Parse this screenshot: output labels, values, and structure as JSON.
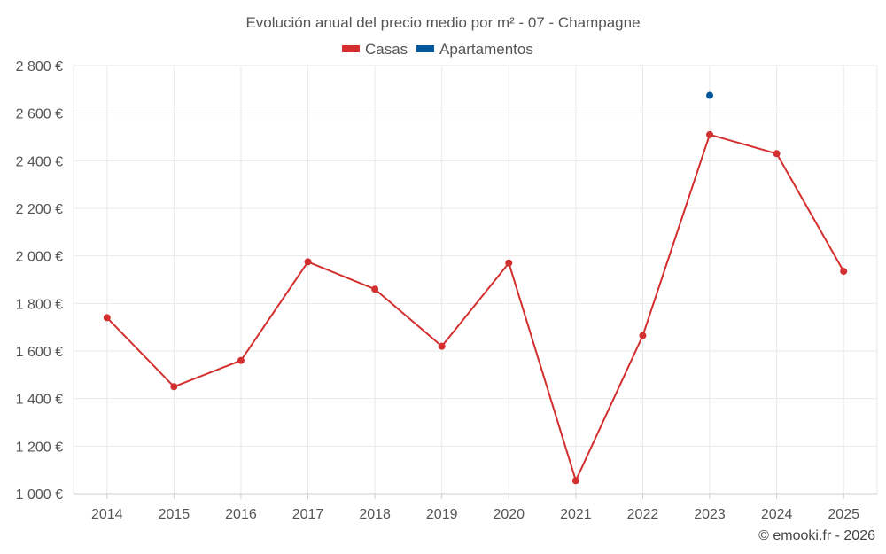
{
  "chart_data": {
    "type": "line",
    "title": "Evolución anual del precio medio por m² - 07 - Champagne",
    "categories": [
      "2014",
      "2015",
      "2016",
      "2017",
      "2018",
      "2019",
      "2020",
      "2021",
      "2022",
      "2023",
      "2024",
      "2025"
    ],
    "series": [
      {
        "name": "Casas",
        "color": "#d32f2f",
        "values": [
          1740,
          1450,
          1560,
          1975,
          1860,
          1620,
          1970,
          1055,
          1665,
          2510,
          2430,
          1935
        ]
      },
      {
        "name": "Apartamentos",
        "color": "#01579b",
        "values": [
          null,
          null,
          null,
          null,
          null,
          null,
          null,
          null,
          null,
          2675,
          null,
          null
        ]
      }
    ],
    "ylim": [
      1000,
      2800
    ],
    "yticks": [
      1000,
      1200,
      1400,
      1600,
      1800,
      2000,
      2200,
      2400,
      2600,
      2800
    ],
    "ytick_labels": [
      "1 000 €",
      "1 200 €",
      "1 400 €",
      "1 600 €",
      "1 800 €",
      "2 000 €",
      "2 200 €",
      "2 400 €",
      "2 600 €",
      "2 800 €"
    ],
    "xlabel": "",
    "ylabel": "",
    "grid": true,
    "legend_position": "top-center"
  },
  "credit": "© emooki.fr - 2026"
}
